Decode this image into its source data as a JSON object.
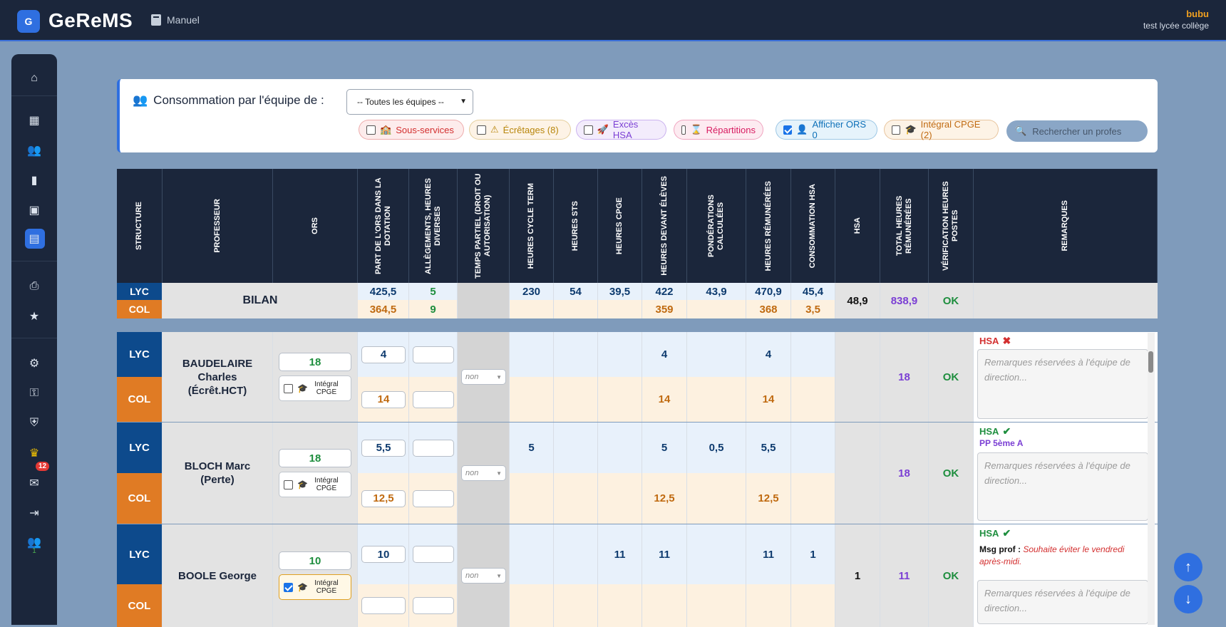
{
  "app": {
    "logo_letter": "G",
    "title": "GeReMS",
    "manual_label": "Manuel"
  },
  "user": {
    "name": "bubu",
    "school": "test lycée collège"
  },
  "sidebar": {
    "badge": "12",
    "count": "1"
  },
  "filters": {
    "title": "Consommation par l'équipe de :",
    "team_select": "-- Toutes les équipes --",
    "pills": [
      {
        "label": "Sous-services",
        "icon": "🏫",
        "checked": false,
        "color": "#d32f2f"
      },
      {
        "label": "Écrêtages (8)",
        "icon": "⚠",
        "checked": false,
        "color": "#b8860b"
      },
      {
        "label": "Excès HSA",
        "icon": "🚀",
        "checked": false,
        "color": "#7b3fd4"
      },
      {
        "label": "Répartitions",
        "icon": "⌛",
        "checked": false,
        "color": "#d81b60"
      },
      {
        "label": "Afficher ORS 0",
        "icon": "👤",
        "checked": true,
        "color": "#0b6fb8"
      },
      {
        "label": "Intégral CPGE (2)",
        "icon": "🎓",
        "checked": false,
        "color": "#c06a10"
      }
    ],
    "search_placeholder": "Rechercher un profes"
  },
  "table": {
    "headers": [
      "STRUCTURE",
      "PROFESSEUR",
      "ORS",
      "PART DE L'ORS DANS LA DOTATION",
      "ALLÈGEMENTS, HEURES DIVERSES",
      "TEMPS PARTIEL (DROIT OU AUTORISATION)",
      "HEURES CYCLE TERM",
      "HEURES STS",
      "HEURES CPGE",
      "HEURES DEVANT ÉLÈVES",
      "PONDÉRATIONS CALCULÉES",
      "HEURES RÉMUNÉRÉES",
      "CONSOMMATION HSA",
      "HSA",
      "TOTAL HEURES RÉMUNÉRÉES",
      "VÉRIFICATION HEURES POSTES",
      "REMARQUES"
    ],
    "bilan": {
      "label": "BILAN",
      "lyc": "LYC",
      "col": "COL",
      "lyc_values": [
        "425,5",
        "5",
        "",
        "230",
        "54",
        "39,5",
        "422",
        "43,9",
        "470,9",
        "45,4"
      ],
      "col_values": [
        "364,5",
        "9",
        "",
        "",
        "",
        "",
        "359",
        "",
        "368",
        "3,5"
      ],
      "hsa": "48,9",
      "total": "838,9",
      "verif": "OK"
    },
    "teachers": [
      {
        "name": "BAUDELAIRE Charles (Écrêt.HCT)",
        "ors": "18",
        "cpge_label": "Intégral CPGE",
        "cpge_checked": false,
        "lyc_part": "4",
        "col_part": "14",
        "temps": "non",
        "lyc_vals": [
          "",
          "",
          "",
          "4",
          "",
          "4",
          ""
        ],
        "col_vals": [
          "",
          "",
          "",
          "14",
          "",
          "14",
          ""
        ],
        "hsa": "",
        "total": "18",
        "verif": "OK",
        "hsa_status": "HSA",
        "hsa_ok": false,
        "note": "",
        "msg_label": "",
        "msg": "",
        "remark_placeholder": "Remarques réservées à l'équipe de direction..."
      },
      {
        "name": "BLOCH Marc (Perte)",
        "ors": "18",
        "cpge_label": "Intégral CPGE",
        "cpge_checked": false,
        "lyc_part": "5,5",
        "col_part": "12,5",
        "temps": "non",
        "lyc_vals": [
          "5",
          "",
          "",
          "5",
          "0,5",
          "5,5",
          ""
        ],
        "col_vals": [
          "",
          "",
          "",
          "12,5",
          "",
          "12,5",
          ""
        ],
        "hsa": "",
        "total": "18",
        "verif": "OK",
        "hsa_status": "HSA",
        "hsa_ok": true,
        "note": "PP 5ème A",
        "msg_label": "",
        "msg": "",
        "remark_placeholder": "Remarques réservées à l'équipe de direction..."
      },
      {
        "name": "BOOLE George",
        "ors": "10",
        "cpge_label": "Intégral CPGE",
        "cpge_checked": true,
        "lyc_part": "10",
        "col_part": "",
        "temps": "non",
        "lyc_vals": [
          "",
          "",
          "11",
          "11",
          "",
          "11",
          "1"
        ],
        "col_vals": [
          "",
          "",
          "",
          "",
          "",
          "",
          ""
        ],
        "hsa": "1",
        "total": "11",
        "verif": "OK",
        "hsa_status": "HSA",
        "hsa_ok": true,
        "note": "",
        "msg_label": "Msg prof :",
        "msg": "Souhaite éviter le vendredi après-midi.",
        "remark_placeholder": "Remarques réservées à l'équipe de direction..."
      }
    ]
  },
  "colors": {
    "lyc": "#0d4a8c",
    "col": "#e07b24",
    "ok": "#1e8e3e",
    "total": "#7b3fd4",
    "header_bg": "#1b263b",
    "page_bg": "#7f9bbb"
  }
}
